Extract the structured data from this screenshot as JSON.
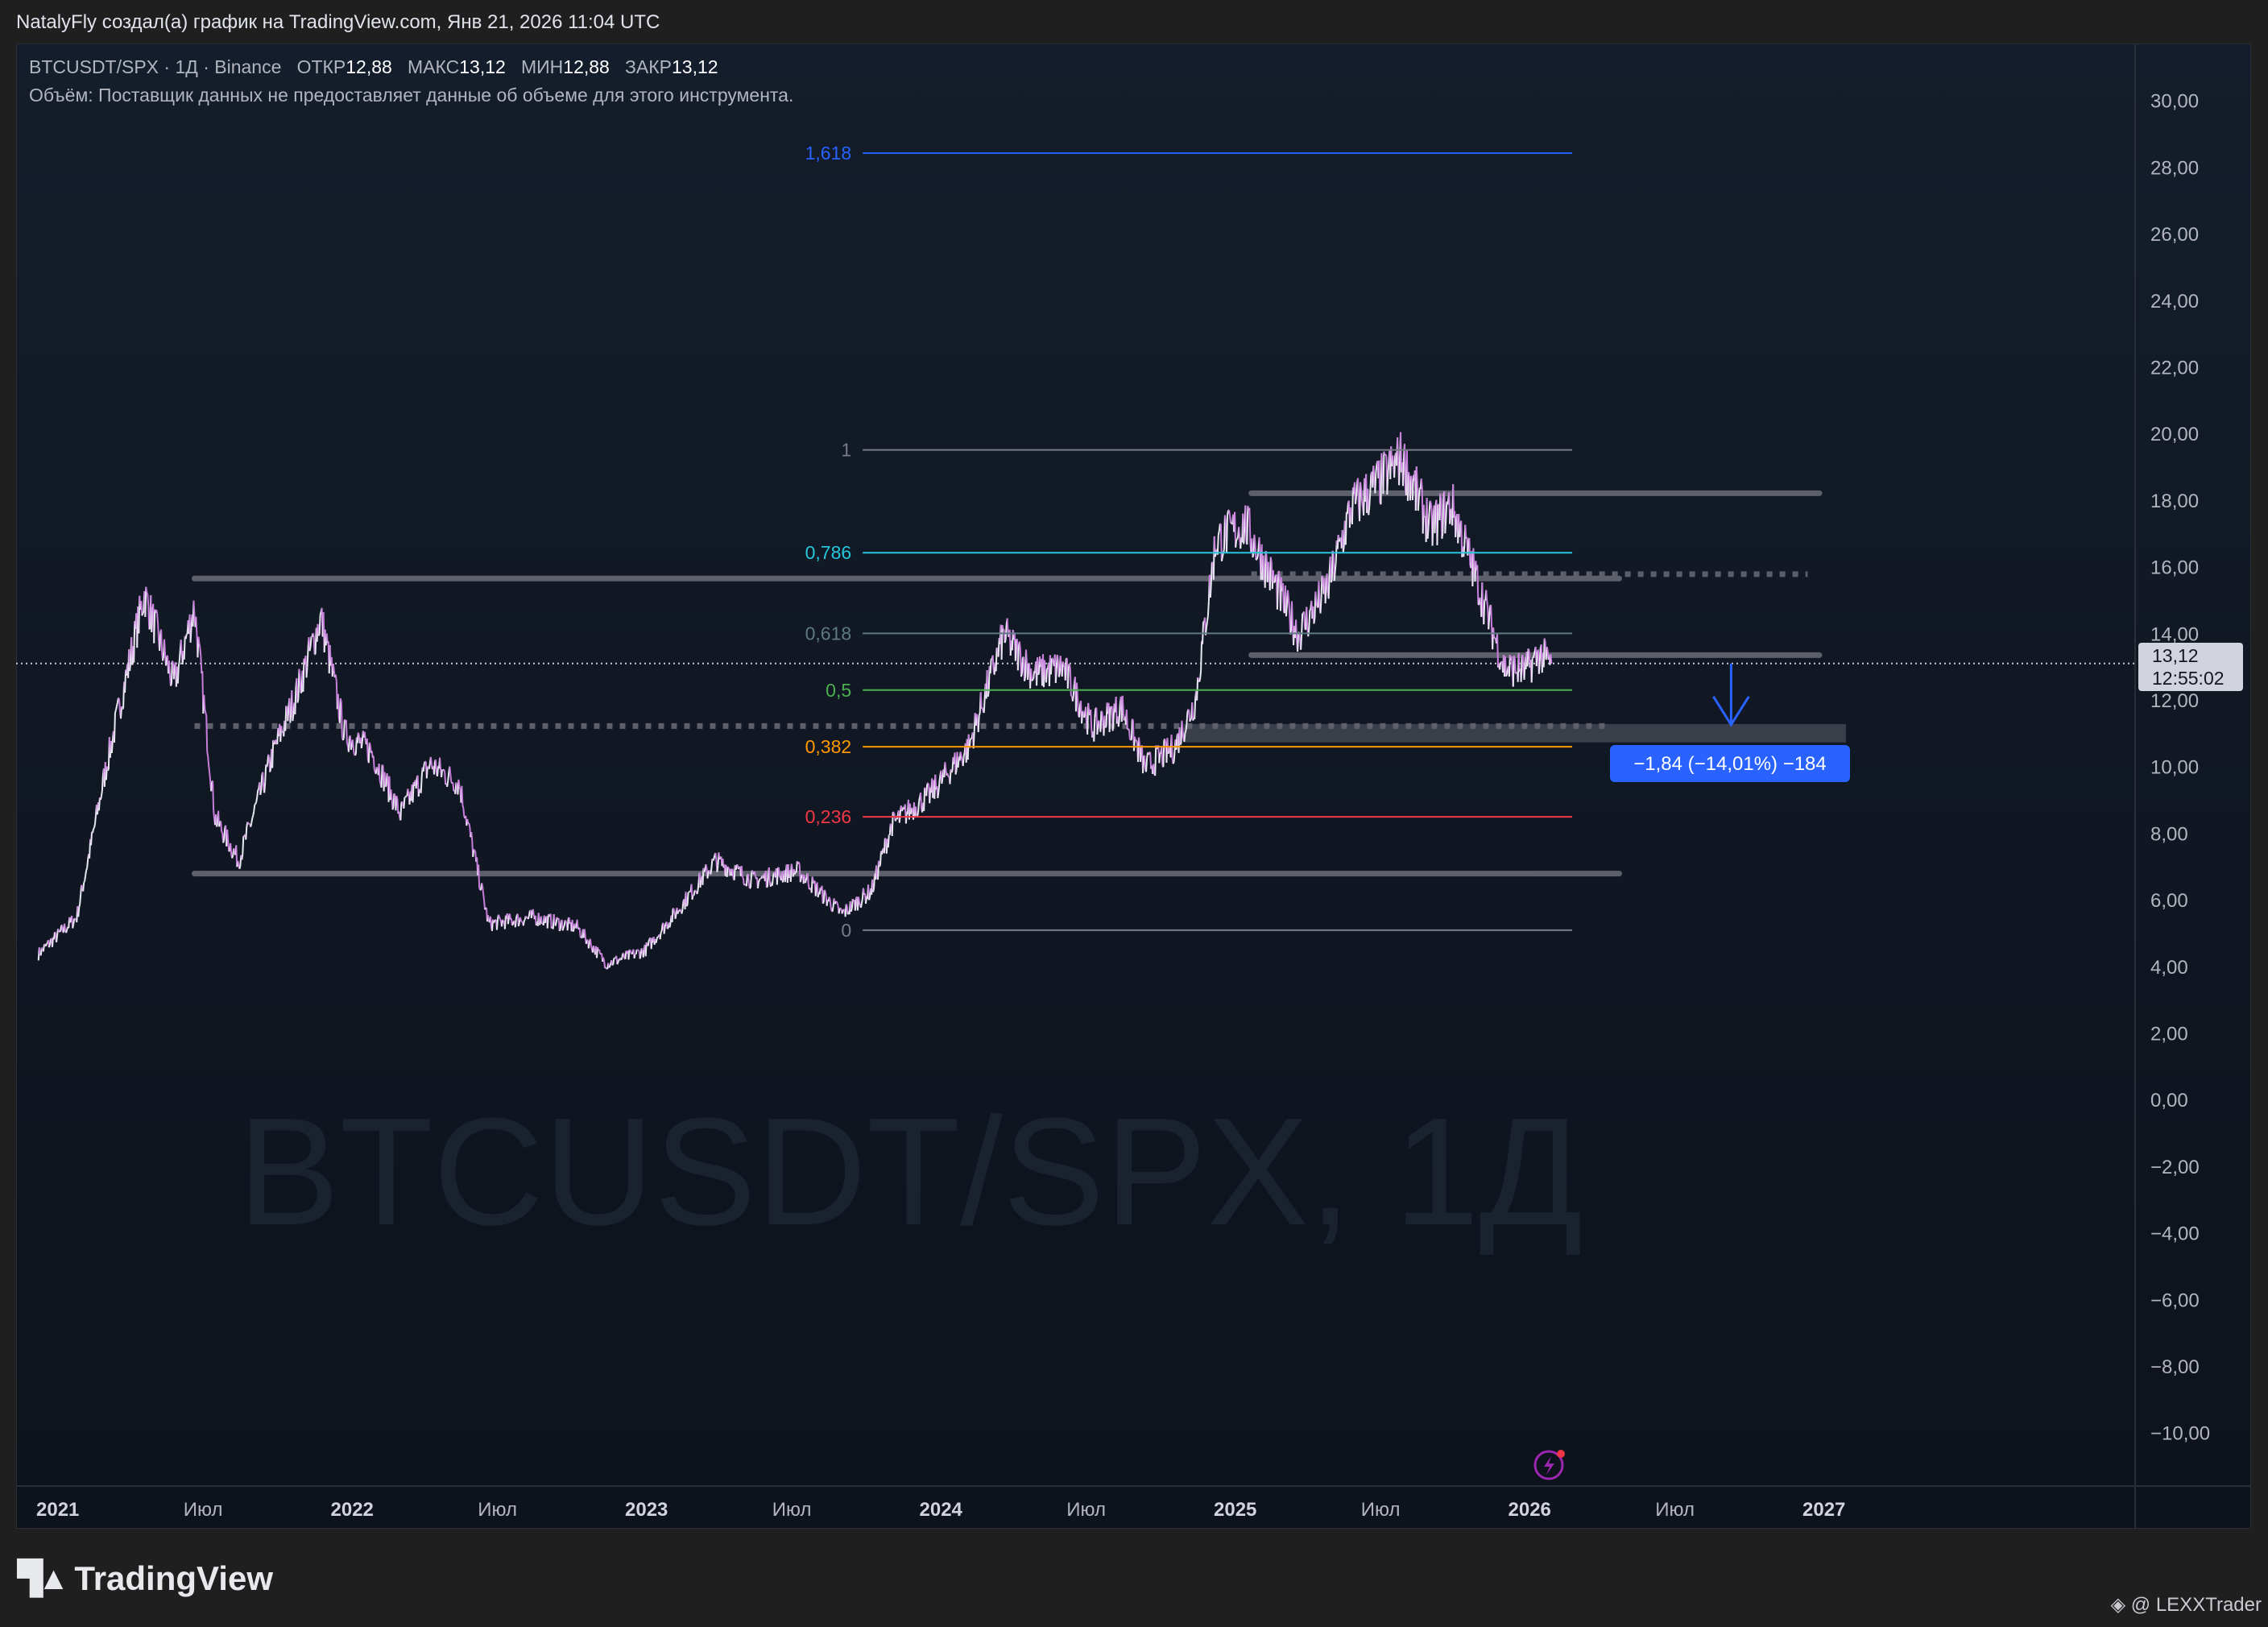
{
  "header": {
    "credit": "NatalyFly создал(а) график на TradingView.com, Янв 21, 2026 11:04 UTC"
  },
  "legend": {
    "symbol": "BTCUSDT/SPX · 1Д · Binance",
    "open_label": "ОТКР",
    "open": "12,88",
    "high_label": "МАКС",
    "high": "13,12",
    "low_label": "МИН",
    "low": "12,88",
    "close_label": "ЗАКР",
    "close": "13,12",
    "volume_note": "Объём: Поставщик данных не предоставляет данные об объеме для этого инструмента."
  },
  "watermark": "BTCUSDT/SPX, 1Д",
  "price_label": {
    "value": "13,12",
    "countdown": "12:55:02"
  },
  "measure_label": "−1,84 (−14,01%) −184",
  "footer": {
    "logo": "TradingView",
    "author": "@ LEXXTrader"
  },
  "chart_data": {
    "type": "line",
    "title": "BTCUSDT/SPX · 1Д · Binance",
    "ylim": [
      -11,
      31
    ],
    "xlim": [
      2020.92,
      2028.1
    ],
    "y_ticks": [
      "30,00",
      "28,00",
      "26,00",
      "24,00",
      "22,00",
      "20,00",
      "18,00",
      "16,00",
      "14,00",
      "12,00",
      "10,00",
      "8,00",
      "6,00",
      "4,00",
      "2,00",
      "0,00",
      "−2,00",
      "−4,00",
      "−6,00",
      "−8,00",
      "−10,00"
    ],
    "y_tick_values": [
      30,
      28,
      26,
      24,
      22,
      20,
      18,
      16,
      14,
      12,
      10,
      8,
      6,
      4,
      2,
      0,
      -2,
      -4,
      -6,
      -8,
      -10
    ],
    "x_ticks": [
      {
        "label": "2021",
        "t": 2021.0,
        "bold": true
      },
      {
        "label": "Июл",
        "t": 2021.5,
        "bold": false
      },
      {
        "label": "2022",
        "t": 2022.0,
        "bold": true
      },
      {
        "label": "Июл",
        "t": 2022.5,
        "bold": false
      },
      {
        "label": "2023",
        "t": 2023.0,
        "bold": true
      },
      {
        "label": "Июл",
        "t": 2023.5,
        "bold": false
      },
      {
        "label": "2024",
        "t": 2024.0,
        "bold": true
      },
      {
        "label": "Июл",
        "t": 2024.5,
        "bold": false
      },
      {
        "label": "2025",
        "t": 2025.0,
        "bold": true
      },
      {
        "label": "Июл",
        "t": 2025.5,
        "bold": false
      },
      {
        "label": "2026",
        "t": 2026.0,
        "bold": true
      },
      {
        "label": "Июл",
        "t": 2026.5,
        "bold": false
      },
      {
        "label": "2027",
        "t": 2027.0,
        "bold": true
      }
    ],
    "series_anchors": [
      [
        2020.92,
        4.4
      ],
      [
        2021.05,
        5.5
      ],
      [
        2021.15,
        10
      ],
      [
        2021.28,
        15.2
      ],
      [
        2021.38,
        12.5
      ],
      [
        2021.45,
        14.8
      ],
      [
        2021.52,
        8.5
      ],
      [
        2021.6,
        7.2
      ],
      [
        2021.72,
        10.5
      ],
      [
        2021.8,
        12.3
      ],
      [
        2021.88,
        14.5
      ],
      [
        2021.96,
        11
      ],
      [
        2022.05,
        10.5
      ],
      [
        2022.15,
        8.6
      ],
      [
        2022.25,
        10.1
      ],
      [
        2022.35,
        9.5
      ],
      [
        2022.45,
        5.3
      ],
      [
        2022.6,
        5.5
      ],
      [
        2022.75,
        5.2
      ],
      [
        2022.85,
        4.1
      ],
      [
        2022.98,
        4.5
      ],
      [
        2023.1,
        5.8
      ],
      [
        2023.22,
        7.2
      ],
      [
        2023.35,
        6.6
      ],
      [
        2023.5,
        6.9
      ],
      [
        2023.65,
        5.6
      ],
      [
        2023.75,
        6.3
      ],
      [
        2023.82,
        8.3
      ],
      [
        2023.95,
        9.2
      ],
      [
        2024.08,
        10.6
      ],
      [
        2024.2,
        14.0
      ],
      [
        2024.3,
        12.8
      ],
      [
        2024.4,
        13.0
      ],
      [
        2024.5,
        11.2
      ],
      [
        2024.6,
        11.8
      ],
      [
        2024.68,
        10.0
      ],
      [
        2024.78,
        10.6
      ],
      [
        2024.85,
        12.0
      ],
      [
        2024.92,
        16.8
      ],
      [
        2025.02,
        17.3
      ],
      [
        2025.12,
        15.5
      ],
      [
        2025.2,
        14.0
      ],
      [
        2025.3,
        15.4
      ],
      [
        2025.38,
        17.8
      ],
      [
        2025.48,
        18.6
      ],
      [
        2025.55,
        19.3
      ],
      [
        2025.65,
        17.2
      ],
      [
        2025.72,
        17.9
      ],
      [
        2025.8,
        15.8
      ],
      [
        2025.9,
        13.0
      ],
      [
        2025.97,
        12.9
      ],
      [
        2026.02,
        13.4
      ],
      [
        2026.06,
        13.12
      ]
    ],
    "fibonacci": {
      "start_t": 2023.72,
      "end_t": 2026.13,
      "price_0": 5.11,
      "price_1": 19.53,
      "levels": [
        {
          "ratio": 1.618,
          "label": "1,618",
          "color": "#2962ff"
        },
        {
          "ratio": 1,
          "label": "1",
          "color": "#787b86"
        },
        {
          "ratio": 0.786,
          "label": "0,786",
          "color": "#26c6da"
        },
        {
          "ratio": 0.618,
          "label": "0,618",
          "color": "#5d7a80"
        },
        {
          "ratio": 0.5,
          "label": "0,5",
          "color": "#4caf50"
        },
        {
          "ratio": 0.382,
          "label": "0,382",
          "color": "#ff9800"
        },
        {
          "ratio": 0.236,
          "label": "0,236",
          "color": "#f23645"
        },
        {
          "ratio": 0,
          "label": "0",
          "color": "#787b86"
        }
      ]
    },
    "horizontal_lines": [
      {
        "price": 15.67,
        "t1": 2021.45,
        "t2": 2026.29,
        "style": "solid"
      },
      {
        "price": 6.81,
        "t1": 2021.45,
        "t2": 2026.29,
        "style": "solid"
      },
      {
        "price": 18.23,
        "t1": 2025.04,
        "t2": 2026.97,
        "style": "solid"
      },
      {
        "price": 13.37,
        "t1": 2025.04,
        "t2": 2026.97,
        "style": "solid"
      },
      {
        "price": 11.24,
        "t1": 2021.45,
        "t2": 2026.25,
        "style": "dotted"
      },
      {
        "price": 15.8,
        "t1": 2025.04,
        "t2": 2026.93,
        "style": "dotted"
      }
    ],
    "zone": {
      "t1": 2024.81,
      "t2": 2027.06,
      "p_top": 11.3,
      "p_bottom": 10.75
    },
    "current_price": 13.12,
    "measure": {
      "t": 2026.67,
      "from": 13.12,
      "to": 11.28
    },
    "colors": {
      "up": "#e8e8f0",
      "down": "#c77ddb",
      "label_blue": "#2962ff"
    }
  }
}
